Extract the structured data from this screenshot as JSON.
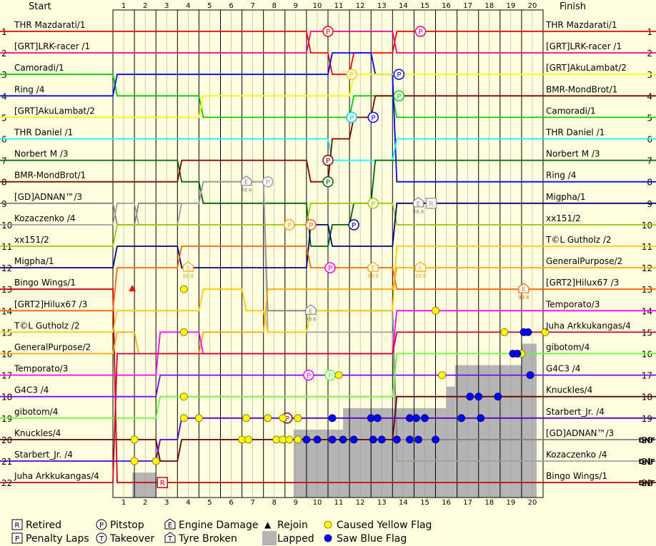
{
  "chart_data": {
    "type": "line",
    "header_left": "Start",
    "header_right": "Finish",
    "laps": [
      "1",
      "2",
      "3",
      "4",
      "5",
      "6",
      "7",
      "8",
      "9",
      "10",
      "11",
      "12",
      "13",
      "14",
      "15",
      "16",
      "17",
      "18",
      "19",
      "20"
    ],
    "positions": [
      "1",
      "2",
      "3",
      "4",
      "5",
      "6",
      "7",
      "8",
      "9",
      "10",
      "11",
      "12",
      "13",
      "14",
      "15",
      "16",
      "17",
      "18",
      "19",
      "20",
      "21",
      "22"
    ],
    "start_labels": [
      "THR Mazdarati/1",
      "[GRT]LRK-racer /1",
      "Camoradi/1",
      "Ring /4",
      "[GRT]AkuLambat/2",
      "THR Daniel /1",
      "Norbert M /3",
      "BMR-MondBrot/1",
      "[GD]ADNAN™/3",
      "Kozaczenko /4",
      "xx151/2",
      "Migpha/1",
      "Bingo Wings/1",
      "[GRT2]Hilux67 /3",
      "T©L Gutholz /2",
      "GeneralPurpose/2",
      "Temporato/3",
      "G4C3 /4",
      "gibotom/4",
      "Knuckles/4",
      "Starbert_Jr. /4",
      "Juha Arkkukangas/4"
    ],
    "finish_labels": [
      "THR Mazdarati/1",
      "[GRT]LRK-racer /1",
      "[GRT]AkuLambat/2",
      "BMR-MondBrot/1",
      "Camoradi/1",
      "THR Daniel /1",
      "Norbert M /3",
      "Ring /4",
      "Migpha/1",
      "xx151/2",
      "T©L Gutholz /2",
      "GeneralPurpose/2",
      "[GRT2]Hilux67 /3",
      "Temporato/3",
      "Juha Arkkukangas/4",
      "gibotom/4",
      "G4C3 /4",
      "Knuckles/4",
      "Starbert_Jr. /4",
      "[GD]ADNAN™/3",
      "Kozaczenko /4",
      "Bingo Wings/1"
    ],
    "finish_status": [
      "",
      "",
      "",
      "",
      "",
      "",
      "",
      "",
      "",
      "",
      "",
      "",
      "",
      "",
      "",
      "",
      "",
      "",
      "",
      "DNF",
      "DNF",
      "DNF"
    ],
    "series": [
      {
        "color": "#ff0000",
        "positions": [
          1,
          1,
          1,
          1,
          1,
          1,
          1,
          1,
          1,
          1,
          2,
          3,
          2,
          2,
          1,
          1,
          1,
          1,
          1,
          1,
          1
        ]
      },
      {
        "color": "#ff0080",
        "positions": [
          2,
          2,
          2,
          2,
          2,
          2,
          2,
          2,
          2,
          2,
          1,
          1,
          1,
          1,
          2,
          2,
          2,
          2,
          2,
          2,
          2
        ]
      },
      {
        "color": "#00cc00",
        "positions": [
          3,
          4,
          4,
          4,
          4,
          5,
          5,
          5,
          5,
          5,
          5,
          5,
          4,
          4,
          5,
          5,
          5,
          5,
          5,
          5,
          5
        ]
      },
      {
        "color": "#0000ff",
        "positions": [
          4,
          3,
          3,
          3,
          3,
          3,
          3,
          3,
          3,
          3,
          3,
          2,
          2,
          3,
          8,
          8,
          8,
          8,
          8,
          8,
          8
        ]
      },
      {
        "color": "#ffff00",
        "positions": [
          5,
          5,
          5,
          5,
          5,
          4,
          4,
          4,
          4,
          4,
          4,
          4,
          3,
          3,
          3,
          3,
          3,
          3,
          3,
          3,
          3
        ]
      },
      {
        "color": "#00ffff",
        "positions": [
          6,
          6,
          6,
          6,
          6,
          6,
          6,
          6,
          6,
          6,
          6,
          7,
          7,
          7,
          6,
          6,
          6,
          6,
          6,
          6,
          6
        ]
      },
      {
        "color": "#006400",
        "positions": [
          7,
          7,
          7,
          7,
          8,
          9,
          9,
          9,
          9,
          9,
          11,
          10,
          9,
          7,
          7,
          7,
          7,
          7,
          7,
          7,
          7
        ]
      },
      {
        "color": "#800000",
        "positions": [
          8,
          8,
          8,
          8,
          7,
          7,
          7,
          7,
          7,
          7,
          8,
          6,
          5,
          4,
          4,
          4,
          4,
          4,
          4,
          4,
          4
        ]
      },
      {
        "color": "#808080",
        "positions": [
          9,
          10,
          9,
          9,
          9,
          8,
          8,
          8,
          14,
          14,
          14,
          14,
          14,
          14,
          20,
          20,
          20,
          20,
          20,
          20,
          20
        ]
      },
      {
        "color": "#a0a0a0",
        "positions": [
          10,
          9,
          10,
          10,
          9,
          8,
          8,
          8,
          15,
          15,
          15,
          15,
          15,
          15,
          21,
          21,
          21,
          21,
          21,
          21,
          21
        ]
      },
      {
        "color": "#99cc00",
        "positions": [
          11,
          10,
          10,
          10,
          10,
          10,
          10,
          10,
          10,
          10,
          9,
          9,
          9,
          9,
          10,
          10,
          10,
          10,
          10,
          10,
          10
        ]
      },
      {
        "color": "#000080",
        "positions": [
          12,
          11,
          11,
          11,
          12,
          12,
          12,
          12,
          12,
          12,
          10,
          11,
          11,
          11,
          9,
          9,
          9,
          9,
          9,
          9,
          9
        ]
      },
      {
        "color": "#cc0000",
        "positions": [
          13,
          22,
          22,
          22,
          22,
          22,
          22,
          22,
          22,
          22,
          22,
          22,
          22,
          22,
          22,
          22,
          22,
          22,
          22,
          22,
          22
        ]
      },
      {
        "color": "#ff6600",
        "positions": [
          14,
          12,
          12,
          12,
          11,
          11,
          11,
          11,
          11,
          11,
          12,
          12,
          12,
          12,
          13,
          13,
          13,
          13,
          13,
          13,
          13
        ]
      },
      {
        "color": "#ffcc00",
        "positions": [
          15,
          14,
          14,
          14,
          14,
          13,
          13,
          14,
          15,
          15,
          14,
          14,
          14,
          14,
          11,
          11,
          11,
          11,
          11,
          11,
          11
        ]
      },
      {
        "color": "#ffaa00",
        "positions": [
          16,
          15,
          16,
          16,
          16,
          15,
          15,
          15,
          13,
          13,
          13,
          13,
          13,
          13,
          12,
          12,
          12,
          12,
          12,
          12,
          12
        ]
      },
      {
        "color": "#ff00ff",
        "positions": [
          17,
          17,
          17,
          15,
          15,
          16,
          16,
          16,
          16,
          16,
          16,
          16,
          16,
          16,
          14,
          14,
          14,
          14,
          14,
          14,
          14
        ]
      },
      {
        "color": "#8000ff",
        "positions": [
          18,
          18,
          18,
          17,
          17,
          17,
          17,
          17,
          17,
          17,
          17,
          17,
          17,
          17,
          17,
          17,
          17,
          17,
          17,
          17,
          17
        ]
      },
      {
        "color": "#66ff33",
        "positions": [
          19,
          19,
          19,
          18,
          18,
          18,
          18,
          18,
          18,
          18,
          18,
          18,
          18,
          18,
          16,
          16,
          16,
          16,
          16,
          16,
          16
        ]
      },
      {
        "color": "#660000",
        "positions": [
          20,
          20,
          20,
          21,
          20,
          20,
          20,
          20,
          20,
          20,
          20,
          20,
          20,
          20,
          18,
          18,
          18,
          18,
          18,
          18,
          18
        ]
      },
      {
        "color": "#5500cc",
        "positions": [
          21,
          21,
          21,
          20,
          19,
          19,
          19,
          19,
          19,
          19,
          19,
          19,
          19,
          19,
          19,
          19,
          19,
          19,
          19,
          19,
          19
        ]
      },
      {
        "color": "#cc0033",
        "positions": [
          22,
          16,
          16,
          16,
          16,
          16,
          16,
          16,
          16,
          16,
          16,
          16,
          16,
          16,
          15,
          15,
          15,
          15,
          15,
          15,
          15
        ]
      }
    ],
    "pitstops": [
      {
        "lap": 10,
        "pos": 1,
        "color": "#ff0000"
      },
      {
        "lap": 14.3,
        "pos": 1,
        "color": "#ff0080"
      },
      {
        "lap": 11.1,
        "pos": 3,
        "color": "#ffcc00"
      },
      {
        "lap": 13.3,
        "pos": 3,
        "color": "#0000ff"
      },
      {
        "lap": 13.3,
        "pos": 4,
        "color": "#00cc00"
      },
      {
        "lap": 11.1,
        "pos": 5,
        "color": "#00cccc"
      },
      {
        "lap": 12.1,
        "pos": 5,
        "color": "#0000ff"
      },
      {
        "lap": 10,
        "pos": 7,
        "color": "#800000"
      },
      {
        "lap": 10,
        "pos": 8,
        "color": "#006400"
      },
      {
        "lap": 7.2,
        "pos": 8,
        "color": "#a0a0a0"
      },
      {
        "lap": 12.1,
        "pos": 9,
        "color": "#99cc00"
      },
      {
        "lap": 11.2,
        "pos": 10,
        "color": "#000080"
      },
      {
        "lap": 8.2,
        "pos": 10,
        "color": "#ffaa00"
      },
      {
        "lap": 9.2,
        "pos": 10,
        "color": "#ff6600"
      },
      {
        "lap": 10.1,
        "pos": 12,
        "color": "#ff00ff"
      },
      {
        "lap": 9.1,
        "pos": 17,
        "color": "#ff00ff"
      },
      {
        "lap": 10.1,
        "pos": 17,
        "color": "#66ff33"
      },
      {
        "lap": 8.1,
        "pos": 19,
        "color": "#800000"
      }
    ],
    "engine_damage": [
      {
        "lap": 6.2,
        "pos": 8,
        "value": "99.6",
        "color": "#808080"
      },
      {
        "lap": 14.2,
        "pos": 9,
        "value": "98.8",
        "color": "#808080"
      },
      {
        "lap": 3.5,
        "pos": 12,
        "value": "98.8",
        "color": "#ffaa00"
      },
      {
        "lap": 12.1,
        "pos": 12,
        "value": "98.8",
        "color": "#ffaa00"
      },
      {
        "lap": 14.3,
        "pos": 12,
        "value": "98.8",
        "color": "#ffaa00"
      },
      {
        "lap": 9.2,
        "pos": 14,
        "value": "99.6",
        "color": "#808080"
      },
      {
        "lap": 19.1,
        "pos": 13,
        "value": "99.6",
        "color": "#ff6600"
      }
    ],
    "retired": [
      {
        "lap": 2.3,
        "pos": 22,
        "color": "#cc0000"
      },
      {
        "lap": 14.8,
        "pos": 9,
        "color": "#a0a0a0"
      }
    ],
    "yellow_flags": [
      {
        "lap": 3.3,
        "pos": 13
      },
      {
        "lap": 3.3,
        "pos": 15
      },
      {
        "lap": 3.3,
        "pos": 18
      },
      {
        "lap": 3.3,
        "pos": 19
      },
      {
        "lap": 4,
        "pos": 19
      },
      {
        "lap": 6.2,
        "pos": 19
      },
      {
        "lap": 7.2,
        "pos": 19
      },
      {
        "lap": 7.9,
        "pos": 19
      },
      {
        "lap": 8.6,
        "pos": 19
      },
      {
        "lap": 6,
        "pos": 20
      },
      {
        "lap": 6.3,
        "pos": 20
      },
      {
        "lap": 7.6,
        "pos": 20
      },
      {
        "lap": 7.9,
        "pos": 20
      },
      {
        "lap": 8.2,
        "pos": 20
      },
      {
        "lap": 8.6,
        "pos": 20
      },
      {
        "lap": 1,
        "pos": 20
      },
      {
        "lap": 1,
        "pos": 21
      },
      {
        "lap": 2,
        "pos": 21
      },
      {
        "lap": 15,
        "pos": 14
      },
      {
        "lap": 15.3,
        "pos": 17
      },
      {
        "lap": 10.5,
        "pos": 17
      },
      {
        "lap": 18.2,
        "pos": 15
      },
      {
        "lap": 20.1,
        "pos": 15
      },
      {
        "lap": 19,
        "pos": 16
      }
    ],
    "blue_flags": [
      {
        "lap": 10.2,
        "pos": 19
      },
      {
        "lap": 12,
        "pos": 19
      },
      {
        "lap": 12.3,
        "pos": 19
      },
      {
        "lap": 13.8,
        "pos": 19
      },
      {
        "lap": 14.1,
        "pos": 19
      },
      {
        "lap": 14.5,
        "pos": 19
      },
      {
        "lap": 16.2,
        "pos": 19
      },
      {
        "lap": 17.1,
        "pos": 19
      },
      {
        "lap": 9,
        "pos": 20
      },
      {
        "lap": 9.5,
        "pos": 20
      },
      {
        "lap": 10.2,
        "pos": 20
      },
      {
        "lap": 10.7,
        "pos": 20
      },
      {
        "lap": 11.2,
        "pos": 20
      },
      {
        "lap": 12.1,
        "pos": 20
      },
      {
        "lap": 12.5,
        "pos": 20
      },
      {
        "lap": 13.2,
        "pos": 20
      },
      {
        "lap": 13.8,
        "pos": 20
      },
      {
        "lap": 14.2,
        "pos": 20
      },
      {
        "lap": 15,
        "pos": 20
      },
      {
        "lap": 16.6,
        "pos": 18
      },
      {
        "lap": 17,
        "pos": 18
      },
      {
        "lap": 17.9,
        "pos": 18
      },
      {
        "lap": 18.6,
        "pos": 16
      },
      {
        "lap": 18.8,
        "pos": 16
      },
      {
        "lap": 19.1,
        "pos": 15
      },
      {
        "lap": 19.3,
        "pos": 15
      },
      {
        "lap": 19.4,
        "pos": 17
      }
    ],
    "lapped_area": [
      {
        "from": 0.9,
        "to": 2.0,
        "top": 22
      },
      {
        "from": 8.4,
        "to": 9.9,
        "top": 20
      },
      {
        "from": 9.9,
        "to": 10.7,
        "top": 20
      },
      {
        "from": 10.7,
        "to": 15.5,
        "top": 19
      },
      {
        "from": 15.5,
        "to": 15.9,
        "top": 18
      },
      {
        "from": 15.9,
        "to": 19.0,
        "top": 17
      },
      {
        "from": 19.0,
        "to": 19.7,
        "top": 16
      }
    ],
    "rejoin": {
      "lap": 0.9,
      "pos": 13
    }
  },
  "legend": [
    {
      "icon": "R",
      "label": "Retired"
    },
    {
      "icon": "P",
      "label": "Penalty Laps"
    },
    {
      "icon": "P",
      "label": "Pitstop"
    },
    {
      "icon": "T",
      "label": "Takeover"
    },
    {
      "icon": "E",
      "label": "Engine Damage"
    },
    {
      "icon": "T",
      "label": "Tyre Broken"
    },
    {
      "icon": "▲",
      "label": "Rejoin"
    },
    {
      "icon": "",
      "label": "Lapped"
    },
    {
      "icon": "",
      "label": "Caused Yellow Flag"
    },
    {
      "icon": "",
      "label": "Saw Blue Flag"
    }
  ]
}
